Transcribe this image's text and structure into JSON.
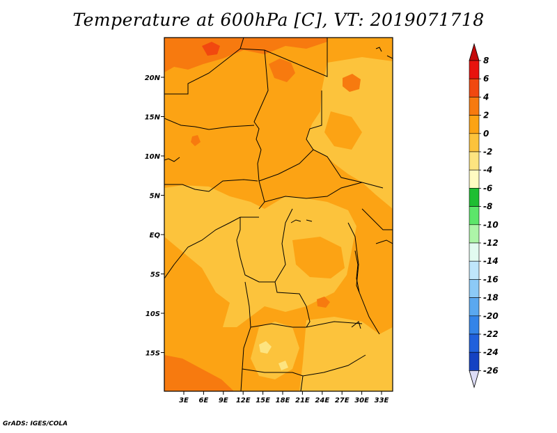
{
  "title": "Temperature at 600hPa [C], VT: 2019071718",
  "credit": "GrADS: IGES/COLA",
  "map": {
    "lon_ticks": [
      "3E",
      "6E",
      "9E",
      "12E",
      "15E",
      "18E",
      "21E",
      "24E",
      "27E",
      "30E",
      "33E"
    ],
    "lat_ticks": [
      "20N",
      "15N",
      "10N",
      "5N",
      "EQ",
      "5S",
      "10S",
      "15S"
    ]
  },
  "colorbar": {
    "labels": [
      "8",
      "6",
      "4",
      "2",
      "0",
      "-2",
      "-4",
      "-6",
      "-8",
      "-10",
      "-12",
      "-14",
      "-16",
      "-18",
      "-20",
      "-22",
      "-24",
      "-26"
    ],
    "colors": [
      "#e8130e",
      "#f1480f",
      "#f77a0f",
      "#fca314",
      "#fcc33c",
      "#fde480",
      "#fffbc2",
      "#1ebe32",
      "#5ce66a",
      "#adf5a8",
      "#e2fbf0",
      "#bfe6fb",
      "#8ccaf7",
      "#5aa8f0",
      "#3484e8",
      "#2060dc",
      "#1542c2",
      "#0c2794",
      "#080c66"
    ],
    "top_arrow_color": "#c40a0a",
    "bottom_arrow_color": "#dcdcf6"
  }
}
